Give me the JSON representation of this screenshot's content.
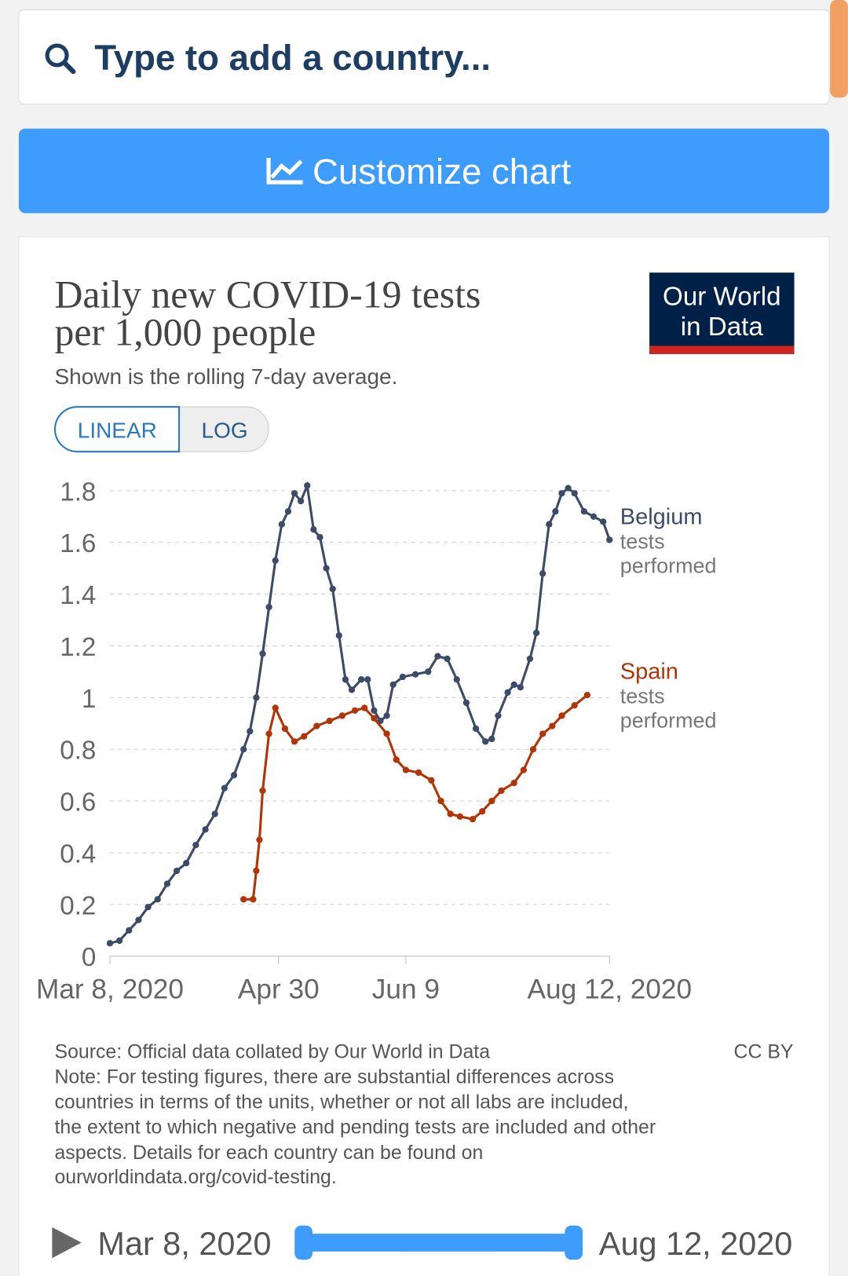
{
  "search": {
    "placeholder": "Type to add a country..."
  },
  "customize_button": "Customize chart",
  "logo": [
    "Our World",
    "in Data"
  ],
  "scale_toggle": {
    "linear": "LINEAR",
    "log": "LOG"
  },
  "footer": {
    "source": "Source: Official data collated by Our World in Data",
    "license": "CC BY",
    "note": [
      "Note: For testing figures, there are substantial differences across",
      "countries in terms of the units, whether or not all labs are included,",
      "the extent to which negative and pending tests are included and other",
      "aspects. Details for each country can be found on",
      "ourworldindata.org/covid-testing."
    ]
  },
  "timeline": {
    "start": "Mar 8, 2020",
    "end": "Aug 12, 2020"
  },
  "chart_data": {
    "type": "line",
    "title": [
      "Daily new COVID-19 tests",
      "per 1,000 people"
    ],
    "subtitle": "Shown is the rolling 7-day average.",
    "xlim": [
      "2020-03-08",
      "2020-08-12"
    ],
    "xticks": [
      {
        "value": "2020-03-08",
        "label": "Mar 8, 2020"
      },
      {
        "value": "2020-04-30",
        "label": "Apr 30"
      },
      {
        "value": "2020-06-09",
        "label": "Jun 9"
      },
      {
        "value": "2020-08-12",
        "label": "Aug 12, 2020"
      }
    ],
    "ylim": [
      0,
      1.8
    ],
    "yticks": [
      0,
      0.2,
      0.4,
      0.6,
      0.8,
      1,
      1.2,
      1.4,
      1.6,
      1.8
    ],
    "grid": true,
    "series": [
      {
        "name": "Belgium",
        "annotation": "tests performed",
        "color": "#3c4c66",
        "x": [
          "2020-03-08",
          "2020-03-11",
          "2020-03-14",
          "2020-03-17",
          "2020-03-20",
          "2020-03-23",
          "2020-03-26",
          "2020-03-29",
          "2020-04-01",
          "2020-04-04",
          "2020-04-07",
          "2020-04-10",
          "2020-04-13",
          "2020-04-16",
          "2020-04-19",
          "2020-04-21",
          "2020-04-23",
          "2020-04-25",
          "2020-04-27",
          "2020-04-29",
          "2020-05-01",
          "2020-05-03",
          "2020-05-05",
          "2020-05-07",
          "2020-05-09",
          "2020-05-11",
          "2020-05-13",
          "2020-05-15",
          "2020-05-17",
          "2020-05-19",
          "2020-05-21",
          "2020-05-23",
          "2020-05-26",
          "2020-05-28",
          "2020-05-30",
          "2020-06-01",
          "2020-06-03",
          "2020-06-05",
          "2020-06-08",
          "2020-06-12",
          "2020-06-16",
          "2020-06-19",
          "2020-06-22",
          "2020-06-25",
          "2020-06-28",
          "2020-07-01",
          "2020-07-04",
          "2020-07-06",
          "2020-07-08",
          "2020-07-11",
          "2020-07-13",
          "2020-07-15",
          "2020-07-18",
          "2020-07-20",
          "2020-07-22",
          "2020-07-24",
          "2020-07-26",
          "2020-07-28",
          "2020-07-30",
          "2020-08-01",
          "2020-08-04",
          "2020-08-07",
          "2020-08-10",
          "2020-08-12"
        ],
        "values": [
          0.05,
          0.06,
          0.1,
          0.14,
          0.19,
          0.22,
          0.28,
          0.33,
          0.36,
          0.43,
          0.49,
          0.55,
          0.65,
          0.7,
          0.8,
          0.87,
          1.0,
          1.17,
          1.35,
          1.53,
          1.67,
          1.72,
          1.79,
          1.76,
          1.82,
          1.65,
          1.62,
          1.5,
          1.42,
          1.24,
          1.07,
          1.03,
          1.07,
          1.07,
          0.95,
          0.91,
          0.93,
          1.05,
          1.08,
          1.09,
          1.1,
          1.16,
          1.15,
          1.07,
          0.98,
          0.88,
          0.83,
          0.84,
          0.93,
          1.02,
          1.05,
          1.04,
          1.15,
          1.25,
          1.48,
          1.67,
          1.72,
          1.79,
          1.81,
          1.79,
          1.72,
          1.7,
          1.68,
          1.61
        ]
      },
      {
        "name": "Spain",
        "annotation": "tests performed",
        "color": "#b13507",
        "x": [
          "2020-04-19",
          "2020-04-22",
          "2020-04-23",
          "2020-04-24",
          "2020-04-25",
          "2020-04-27",
          "2020-04-29",
          "2020-05-02",
          "2020-05-05",
          "2020-05-08",
          "2020-05-12",
          "2020-05-16",
          "2020-05-20",
          "2020-05-24",
          "2020-05-27",
          "2020-05-30",
          "2020-06-03",
          "2020-06-06",
          "2020-06-09",
          "2020-06-13",
          "2020-06-17",
          "2020-06-20",
          "2020-06-23",
          "2020-06-26",
          "2020-06-30",
          "2020-07-03",
          "2020-07-06",
          "2020-07-09",
          "2020-07-13",
          "2020-07-16",
          "2020-07-19",
          "2020-07-22",
          "2020-07-25",
          "2020-07-28",
          "2020-08-01",
          "2020-08-05"
        ],
        "values": [
          0.22,
          0.22,
          0.33,
          0.45,
          0.64,
          0.86,
          0.96,
          0.88,
          0.83,
          0.85,
          0.89,
          0.91,
          0.93,
          0.95,
          0.96,
          0.92,
          0.86,
          0.76,
          0.72,
          0.71,
          0.68,
          0.6,
          0.55,
          0.54,
          0.53,
          0.56,
          0.6,
          0.64,
          0.67,
          0.72,
          0.8,
          0.86,
          0.89,
          0.93,
          0.97,
          1.01
        ]
      }
    ]
  }
}
